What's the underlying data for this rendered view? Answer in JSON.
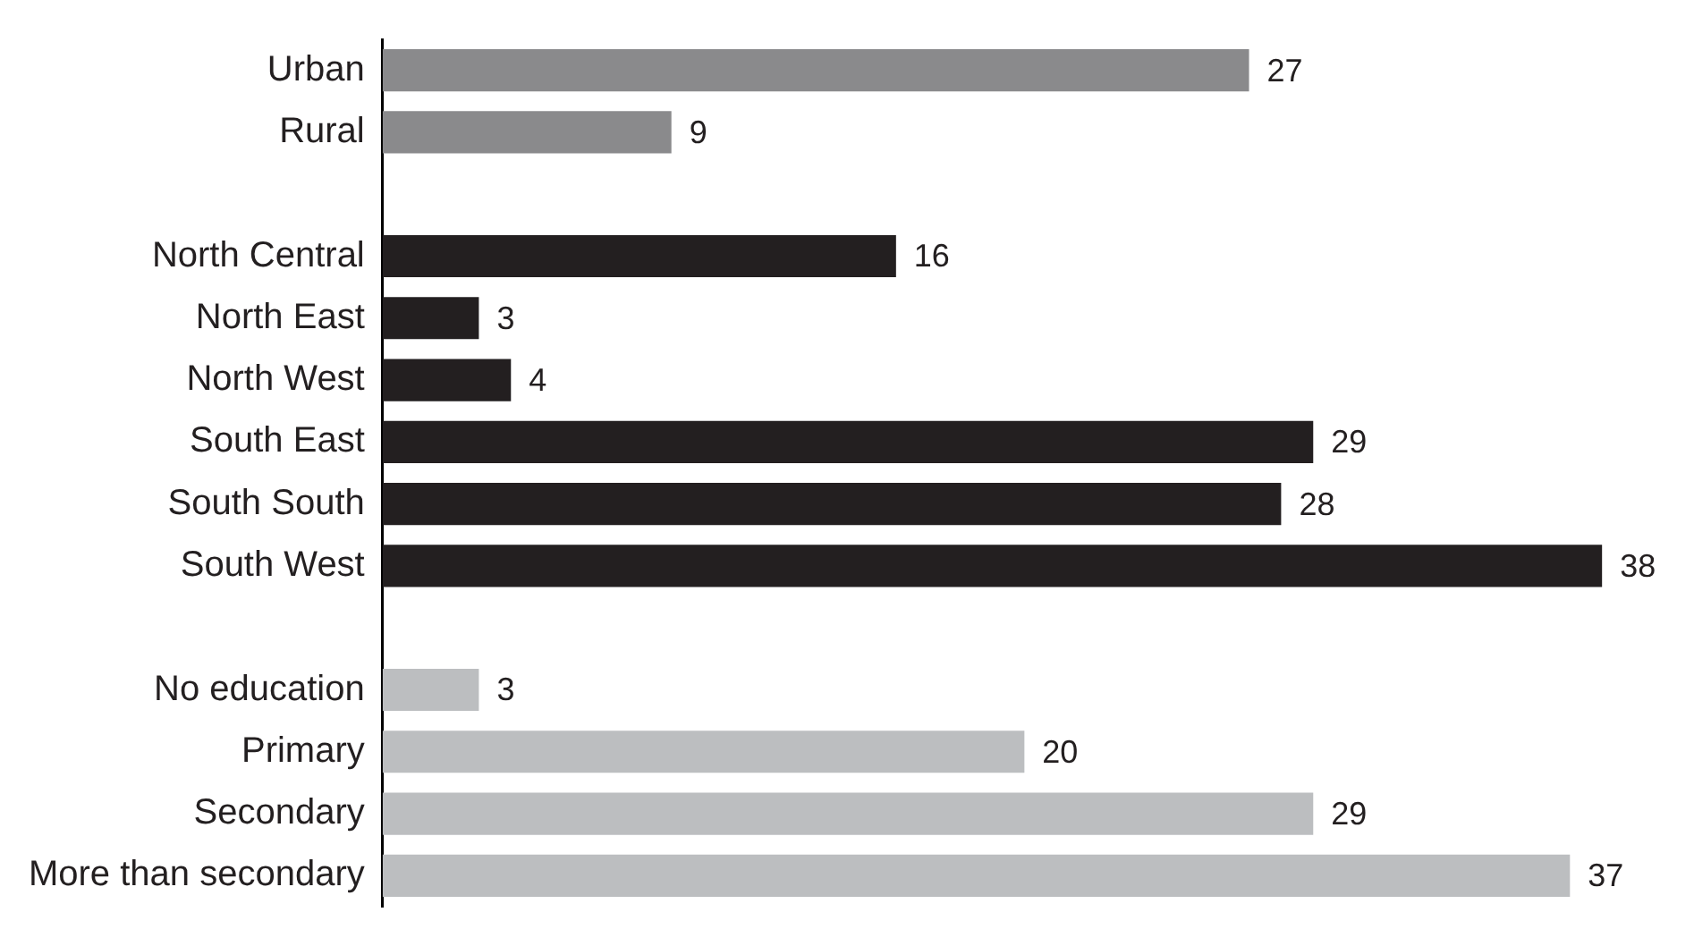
{
  "chart_data": {
    "type": "bar",
    "orientation": "horizontal",
    "categories": [
      "Urban",
      "Rural",
      null,
      "North Central",
      "North East",
      "North West",
      "South East",
      "South South",
      "South West",
      null,
      "No education",
      "Primary",
      "Secondary",
      "More than secondary"
    ],
    "values": [
      27,
      9,
      null,
      16,
      3,
      4,
      29,
      28,
      38,
      null,
      3,
      20,
      29,
      37
    ],
    "colors": [
      "#8a8a8c",
      "#8a8a8c",
      null,
      "#231f20",
      "#231f20",
      "#231f20",
      "#231f20",
      "#231f20",
      "#231f20",
      null,
      "#bcbec0",
      "#bcbec0",
      "#bcbec0",
      "#bcbec0"
    ],
    "data_labels": true,
    "legend": false
  }
}
